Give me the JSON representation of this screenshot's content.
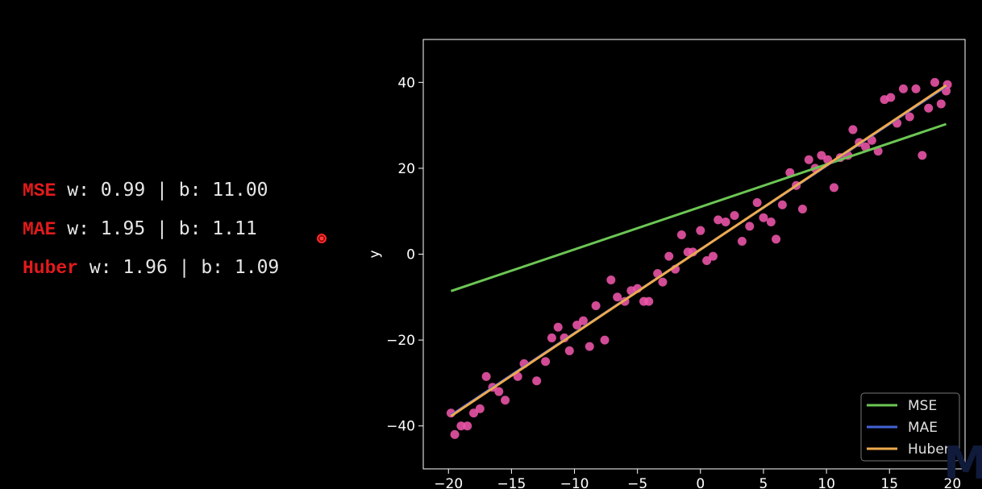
{
  "stats": [
    {
      "name": "MSE",
      "text": " w: 0.99 | b: 11.00"
    },
    {
      "name": "MAE",
      "text": " w: 1.95 | b: 1.11"
    },
    {
      "name": "Huber",
      "text": " w: 1.96 | b: 1.09"
    }
  ],
  "watermark": "M",
  "chart_data": {
    "type": "scatter",
    "title": "",
    "xlabel": "",
    "ylabel": "y",
    "xlim": [
      -22,
      21
    ],
    "ylim": [
      -50,
      50
    ],
    "xticks": [
      -20,
      -15,
      -10,
      -5,
      0,
      5,
      10,
      15,
      20
    ],
    "yticks": [
      -40,
      -20,
      0,
      20,
      40
    ],
    "grid": false,
    "legend": {
      "placement": "bottom-right"
    },
    "points": {
      "color": "#ee55aa",
      "x": [
        -19.8,
        -19.5,
        -19.0,
        -18.5,
        -18.0,
        -17.5,
        -17.0,
        -16.5,
        -16.0,
        -15.5,
        -14.5,
        -14.0,
        -13.0,
        -12.3,
        -11.8,
        -11.3,
        -10.8,
        -10.4,
        -9.8,
        -9.3,
        -8.8,
        -8.3,
        -7.6,
        -7.1,
        -6.6,
        -6.0,
        -5.5,
        -5.0,
        -4.5,
        -4.1,
        -3.4,
        -3.0,
        -2.5,
        -2.0,
        -1.5,
        -1.0,
        -0.6,
        0.0,
        0.5,
        1.0,
        1.4,
        2.0,
        2.7,
        3.3,
        3.9,
        4.5,
        5.0,
        5.6,
        6.0,
        6.5,
        7.1,
        7.6,
        8.1,
        8.6,
        9.1,
        9.6,
        10.1,
        10.6,
        11.1,
        11.7,
        12.1,
        12.6,
        13.1,
        13.6,
        14.1,
        14.6,
        15.1,
        15.6,
        16.1,
        16.6,
        17.1,
        17.6,
        18.1,
        18.6,
        19.1,
        19.5
      ],
      "y": [
        -37,
        -42,
        -40,
        -40,
        -37,
        -36,
        -28.5,
        -31,
        -32,
        -34,
        -28.5,
        -25.5,
        -29.5,
        -25,
        -19.5,
        -17,
        -19.5,
        -22.5,
        -16.5,
        -15.5,
        -21.5,
        -12,
        -20,
        -6,
        -10,
        -11,
        -8.5,
        -8,
        -11,
        -11,
        -4.5,
        -6.5,
        -0.5,
        -3.5,
        4.5,
        0.5,
        0.5,
        5.5,
        -1.5,
        -0.5,
        8,
        7.5,
        9,
        3,
        6.5,
        12,
        8.5,
        7.5,
        3.5,
        11.5,
        19,
        16,
        10.5,
        22,
        20,
        23,
        22,
        15.5,
        22.5,
        23,
        29,
        26,
        25,
        26.5,
        24,
        36,
        36.5,
        30.5,
        38.5,
        32,
        38.5,
        23,
        34,
        40,
        35,
        38
      ],
      "extra_points": [
        [
          19.6,
          39.5
        ]
      ]
    },
    "series": [
      {
        "name": "MSE",
        "color": "#6cc654",
        "x": [
          -19.8,
          19.5
        ],
        "y": [
          -8.6,
          30.3
        ]
      },
      {
        "name": "MAE",
        "color": "#4563d6",
        "x": [
          -19.8,
          19.5
        ],
        "y": [
          -37.5,
          39.1
        ]
      },
      {
        "name": "Huber",
        "color": "#eeaa4d",
        "x": [
          -19.8,
          19.5
        ],
        "y": [
          -37.7,
          39.3
        ]
      }
    ]
  }
}
